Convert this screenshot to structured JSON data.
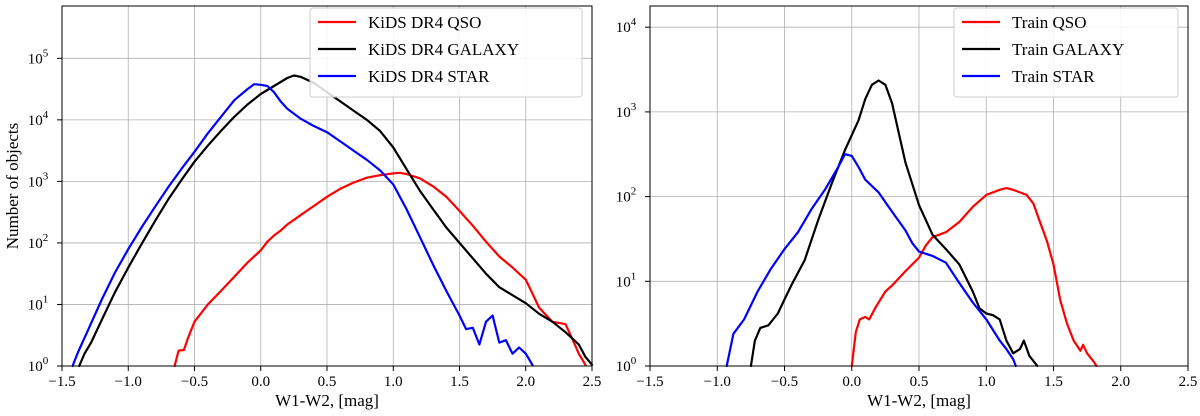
{
  "chart_data": [
    {
      "type": "line",
      "title": "",
      "xlabel": "W1-W2, [mag]",
      "ylabel": "Number of objects",
      "yscale": "log",
      "xlim": [
        -1.5,
        2.5
      ],
      "ylim_exp": [
        0,
        5.85
      ],
      "grid": true,
      "legend_position": "top-right",
      "x_ticks": [
        {
          "value": -1.5,
          "label": "−1.5"
        },
        {
          "value": -1.0,
          "label": "−1.0"
        },
        {
          "value": -0.5,
          "label": "−0.5"
        },
        {
          "value": 0.0,
          "label": "0.0"
        },
        {
          "value": 0.5,
          "label": "0.5"
        },
        {
          "value": 1.0,
          "label": "1.0"
        },
        {
          "value": 1.5,
          "label": "1.5"
        },
        {
          "value": 2.0,
          "label": "2.0"
        },
        {
          "value": 2.5,
          "label": "2.5"
        }
      ],
      "y_ticks": [
        {
          "exp": 0,
          "base": "10",
          "sup": "0"
        },
        {
          "exp": 1,
          "base": "10",
          "sup": "1"
        },
        {
          "exp": 2,
          "base": "10",
          "sup": "2"
        },
        {
          "exp": 3,
          "base": "10",
          "sup": "3"
        },
        {
          "exp": 4,
          "base": "10",
          "sup": "4"
        },
        {
          "exp": 5,
          "base": "10",
          "sup": "5"
        }
      ],
      "series": [
        {
          "name": "KiDS DR4 QSO",
          "color": "#ff0000",
          "points": [
            [
              -0.65,
              0
            ],
            [
              -0.62,
              0.25
            ],
            [
              -0.58,
              0.26
            ],
            [
              -0.55,
              0.45
            ],
            [
              -0.5,
              0.72
            ],
            [
              -0.4,
              1.0
            ],
            [
              -0.3,
              1.22
            ],
            [
              -0.2,
              1.45
            ],
            [
              -0.1,
              1.68
            ],
            [
              0.0,
              1.88
            ],
            [
              0.05,
              2.02
            ],
            [
              0.1,
              2.12
            ],
            [
              0.15,
              2.2
            ],
            [
              0.2,
              2.3
            ],
            [
              0.3,
              2.45
            ],
            [
              0.4,
              2.6
            ],
            [
              0.5,
              2.75
            ],
            [
              0.6,
              2.88
            ],
            [
              0.7,
              2.98
            ],
            [
              0.8,
              3.06
            ],
            [
              0.9,
              3.1
            ],
            [
              1.0,
              3.13
            ],
            [
              1.05,
              3.14
            ],
            [
              1.1,
              3.12
            ],
            [
              1.2,
              3.05
            ],
            [
              1.3,
              2.92
            ],
            [
              1.4,
              2.75
            ],
            [
              1.5,
              2.52
            ],
            [
              1.6,
              2.28
            ],
            [
              1.7,
              2.02
            ],
            [
              1.8,
              1.78
            ],
            [
              1.9,
              1.6
            ],
            [
              2.0,
              1.4
            ],
            [
              2.05,
              1.18
            ],
            [
              2.1,
              0.95
            ],
            [
              2.2,
              0.72
            ],
            [
              2.3,
              0.68
            ],
            [
              2.35,
              0.45
            ],
            [
              2.4,
              0.2
            ],
            [
              2.45,
              0.02
            ]
          ]
        },
        {
          "name": "KiDS DR4 GALAXY",
          "color": "#000000",
          "points": [
            [
              -1.37,
              0
            ],
            [
              -1.33,
              0.2
            ],
            [
              -1.28,
              0.38
            ],
            [
              -1.2,
              0.75
            ],
            [
              -1.1,
              1.2
            ],
            [
              -1.0,
              1.6
            ],
            [
              -0.9,
              1.98
            ],
            [
              -0.8,
              2.35
            ],
            [
              -0.7,
              2.7
            ],
            [
              -0.6,
              3.02
            ],
            [
              -0.5,
              3.32
            ],
            [
              -0.4,
              3.58
            ],
            [
              -0.3,
              3.82
            ],
            [
              -0.2,
              4.05
            ],
            [
              -0.1,
              4.25
            ],
            [
              0.0,
              4.42
            ],
            [
              0.1,
              4.55
            ],
            [
              0.2,
              4.68
            ],
            [
              0.25,
              4.72
            ],
            [
              0.3,
              4.7
            ],
            [
              0.4,
              4.6
            ],
            [
              0.5,
              4.45
            ],
            [
              0.6,
              4.3
            ],
            [
              0.7,
              4.15
            ],
            [
              0.8,
              4.0
            ],
            [
              0.9,
              3.82
            ],
            [
              1.0,
              3.55
            ],
            [
              1.1,
              3.2
            ],
            [
              1.2,
              2.85
            ],
            [
              1.3,
              2.55
            ],
            [
              1.4,
              2.25
            ],
            [
              1.5,
              2.0
            ],
            [
              1.6,
              1.75
            ],
            [
              1.7,
              1.5
            ],
            [
              1.8,
              1.28
            ],
            [
              1.9,
              1.15
            ],
            [
              2.0,
              1.02
            ],
            [
              2.1,
              0.85
            ],
            [
              2.2,
              0.72
            ],
            [
              2.3,
              0.55
            ],
            [
              2.4,
              0.35
            ],
            [
              2.45,
              0.15
            ],
            [
              2.5,
              0.02
            ]
          ]
        },
        {
          "name": "KiDS DR4 STAR",
          "color": "#0000ff",
          "points": [
            [
              -1.42,
              0
            ],
            [
              -1.38,
              0.22
            ],
            [
              -1.3,
              0.6
            ],
            [
              -1.2,
              1.08
            ],
            [
              -1.1,
              1.52
            ],
            [
              -1.0,
              1.9
            ],
            [
              -0.9,
              2.25
            ],
            [
              -0.8,
              2.58
            ],
            [
              -0.7,
              2.9
            ],
            [
              -0.6,
              3.2
            ],
            [
              -0.5,
              3.48
            ],
            [
              -0.4,
              3.78
            ],
            [
              -0.3,
              4.05
            ],
            [
              -0.2,
              4.32
            ],
            [
              -0.1,
              4.5
            ],
            [
              -0.05,
              4.58
            ],
            [
              0.0,
              4.57
            ],
            [
              0.05,
              4.55
            ],
            [
              0.1,
              4.45
            ],
            [
              0.15,
              4.3
            ],
            [
              0.2,
              4.18
            ],
            [
              0.3,
              4.02
            ],
            [
              0.4,
              3.9
            ],
            [
              0.5,
              3.8
            ],
            [
              0.6,
              3.65
            ],
            [
              0.7,
              3.5
            ],
            [
              0.8,
              3.35
            ],
            [
              0.9,
              3.18
            ],
            [
              1.0,
              2.95
            ],
            [
              1.1,
              2.55
            ],
            [
              1.2,
              2.1
            ],
            [
              1.3,
              1.65
            ],
            [
              1.4,
              1.22
            ],
            [
              1.5,
              0.82
            ],
            [
              1.55,
              0.6
            ],
            [
              1.6,
              0.62
            ],
            [
              1.65,
              0.35
            ],
            [
              1.7,
              0.72
            ],
            [
              1.75,
              0.82
            ],
            [
              1.8,
              0.38
            ],
            [
              1.85,
              0.42
            ],
            [
              1.9,
              0.2
            ],
            [
              1.95,
              0.3
            ],
            [
              2.0,
              0.2
            ],
            [
              2.05,
              0.02
            ]
          ]
        }
      ]
    },
    {
      "type": "line",
      "title": "",
      "xlabel": "W1-W2, [mag]",
      "ylabel": "",
      "yscale": "log",
      "xlim": [
        -1.5,
        2.5
      ],
      "ylim_exp": [
        0,
        4.25
      ],
      "grid": true,
      "legend_position": "top-right",
      "x_ticks": [
        {
          "value": -1.5,
          "label": "−1.5"
        },
        {
          "value": -1.0,
          "label": "−1.0"
        },
        {
          "value": -0.5,
          "label": "−0.5"
        },
        {
          "value": 0.0,
          "label": "0.0"
        },
        {
          "value": 0.5,
          "label": "0.5"
        },
        {
          "value": 1.0,
          "label": "1.0"
        },
        {
          "value": 1.5,
          "label": "1.5"
        },
        {
          "value": 2.0,
          "label": "2.0"
        },
        {
          "value": 2.5,
          "label": "2.5"
        }
      ],
      "y_ticks": [
        {
          "exp": 0,
          "base": "10",
          "sup": "0"
        },
        {
          "exp": 1,
          "base": "10",
          "sup": "1"
        },
        {
          "exp": 2,
          "base": "10",
          "sup": "2"
        },
        {
          "exp": 3,
          "base": "10",
          "sup": "3"
        },
        {
          "exp": 4,
          "base": "10",
          "sup": "4"
        }
      ],
      "series": [
        {
          "name": "Train QSO",
          "color": "#ff0000",
          "points": [
            [
              0.0,
              0
            ],
            [
              0.03,
              0.4
            ],
            [
              0.06,
              0.55
            ],
            [
              0.1,
              0.58
            ],
            [
              0.13,
              0.55
            ],
            [
              0.18,
              0.7
            ],
            [
              0.25,
              0.88
            ],
            [
              0.3,
              0.95
            ],
            [
              0.4,
              1.12
            ],
            [
              0.5,
              1.28
            ],
            [
              0.55,
              1.42
            ],
            [
              0.6,
              1.52
            ],
            [
              0.65,
              1.55
            ],
            [
              0.7,
              1.58
            ],
            [
              0.8,
              1.7
            ],
            [
              0.9,
              1.88
            ],
            [
              1.0,
              2.02
            ],
            [
              1.1,
              2.08
            ],
            [
              1.15,
              2.1
            ],
            [
              1.2,
              2.08
            ],
            [
              1.3,
              2.02
            ],
            [
              1.35,
              1.92
            ],
            [
              1.4,
              1.7
            ],
            [
              1.45,
              1.48
            ],
            [
              1.5,
              1.2
            ],
            [
              1.55,
              0.78
            ],
            [
              1.6,
              0.5
            ],
            [
              1.65,
              0.3
            ],
            [
              1.7,
              0.18
            ],
            [
              1.72,
              0.25
            ],
            [
              1.75,
              0.15
            ],
            [
              1.8,
              0.05
            ],
            [
              1.82,
              0
            ]
          ]
        },
        {
          "name": "Train GALAXY",
          "color": "#000000",
          "points": [
            [
              -0.75,
              0
            ],
            [
              -0.72,
              0.3
            ],
            [
              -0.68,
              0.45
            ],
            [
              -0.62,
              0.48
            ],
            [
              -0.55,
              0.62
            ],
            [
              -0.45,
              0.95
            ],
            [
              -0.35,
              1.25
            ],
            [
              -0.25,
              1.72
            ],
            [
              -0.15,
              2.15
            ],
            [
              -0.05,
              2.55
            ],
            [
              0.05,
              2.9
            ],
            [
              0.1,
              3.15
            ],
            [
              0.15,
              3.32
            ],
            [
              0.2,
              3.37
            ],
            [
              0.25,
              3.32
            ],
            [
              0.3,
              3.1
            ],
            [
              0.35,
              2.75
            ],
            [
              0.4,
              2.4
            ],
            [
              0.5,
              1.9
            ],
            [
              0.6,
              1.55
            ],
            [
              0.7,
              1.38
            ],
            [
              0.8,
              1.2
            ],
            [
              0.9,
              0.88
            ],
            [
              0.95,
              0.68
            ],
            [
              1.0,
              0.62
            ],
            [
              1.05,
              0.6
            ],
            [
              1.1,
              0.55
            ],
            [
              1.15,
              0.3
            ],
            [
              1.2,
              0.15
            ],
            [
              1.25,
              0.2
            ],
            [
              1.28,
              0.3
            ],
            [
              1.32,
              0.12
            ],
            [
              1.38,
              0
            ]
          ]
        },
        {
          "name": "Train STAR",
          "color": "#0000ff",
          "points": [
            [
              -0.93,
              0
            ],
            [
              -0.88,
              0.38
            ],
            [
              -0.8,
              0.55
            ],
            [
              -0.7,
              0.88
            ],
            [
              -0.6,
              1.15
            ],
            [
              -0.5,
              1.38
            ],
            [
              -0.4,
              1.58
            ],
            [
              -0.3,
              1.85
            ],
            [
              -0.2,
              2.08
            ],
            [
              -0.1,
              2.35
            ],
            [
              -0.05,
              2.5
            ],
            [
              0.0,
              2.48
            ],
            [
              0.05,
              2.35
            ],
            [
              0.1,
              2.2
            ],
            [
              0.2,
              2.05
            ],
            [
              0.3,
              1.82
            ],
            [
              0.4,
              1.6
            ],
            [
              0.45,
              1.45
            ],
            [
              0.5,
              1.35
            ],
            [
              0.6,
              1.3
            ],
            [
              0.7,
              1.22
            ],
            [
              0.8,
              0.98
            ],
            [
              0.9,
              0.75
            ],
            [
              1.0,
              0.55
            ],
            [
              1.1,
              0.3
            ],
            [
              1.15,
              0.2
            ],
            [
              1.2,
              0.08
            ],
            [
              1.22,
              0
            ]
          ]
        }
      ]
    }
  ]
}
